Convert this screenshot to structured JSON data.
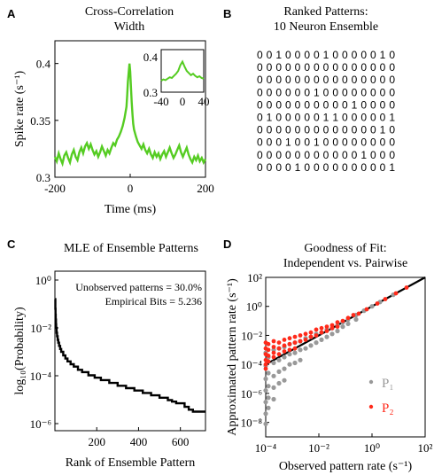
{
  "panels": {
    "A": {
      "letter": "A",
      "title1": "Cross-Correlation",
      "title2": "Width"
    },
    "B": {
      "letter": "B",
      "title1": "Ranked Patterns:",
      "title2": "10 Neuron Ensemble"
    },
    "C": {
      "letter": "C",
      "title1": "MLE of Ensemble Patterns"
    },
    "D": {
      "letter": "D",
      "title1": "Goodness of Fit:",
      "title2": "Independent vs. Pairwise"
    }
  },
  "colors": {
    "green": "#55cc22",
    "gray": "#999999",
    "red": "#ff2a1a",
    "black": "#000000"
  },
  "chart_data": [
    {
      "id": "A",
      "type": "line",
      "title": "Cross-Correlation Width",
      "xlabel": "Time (ms)",
      "ylabel": "Spike rate (s⁻¹)",
      "xlim": [
        -200,
        200
      ],
      "ylim": [
        0.3,
        0.42
      ],
      "xticks": [
        "-200",
        "0",
        "200"
      ],
      "yticks": [
        "0.3",
        "0.35",
        "0.4"
      ],
      "series": [
        {
          "x": [
            -200,
            -195,
            -190,
            -185,
            -180,
            -175,
            -170,
            -165,
            -160,
            -155,
            -150,
            -145,
            -140,
            -135,
            -130,
            -125,
            -120,
            -115,
            -110,
            -105,
            -100,
            -95,
            -90,
            -85,
            -80,
            -75,
            -70,
            -65,
            -60,
            -55,
            -50,
            -45,
            -40,
            -35,
            -30,
            -25,
            -20,
            -15,
            -10,
            -8,
            -6,
            -4,
            -2,
            0,
            2,
            4,
            6,
            8,
            10,
            15,
            20,
            25,
            30,
            35,
            40,
            45,
            50,
            55,
            60,
            65,
            70,
            75,
            80,
            85,
            90,
            95,
            100,
            105,
            110,
            115,
            120,
            125,
            130,
            135,
            140,
            145,
            150,
            155,
            160,
            165,
            170,
            175,
            180,
            185,
            190,
            195,
            200
          ],
          "y": [
            0.318,
            0.314,
            0.321,
            0.316,
            0.312,
            0.319,
            0.322,
            0.317,
            0.313,
            0.32,
            0.324,
            0.318,
            0.315,
            0.322,
            0.326,
            0.321,
            0.327,
            0.33,
            0.325,
            0.329,
            0.324,
            0.32,
            0.323,
            0.318,
            0.322,
            0.327,
            0.323,
            0.319,
            0.324,
            0.321,
            0.326,
            0.33,
            0.328,
            0.333,
            0.336,
            0.34,
            0.345,
            0.352,
            0.362,
            0.372,
            0.384,
            0.392,
            0.4,
            0.393,
            0.38,
            0.366,
            0.355,
            0.347,
            0.342,
            0.336,
            0.331,
            0.328,
            0.325,
            0.329,
            0.324,
            0.321,
            0.325,
            0.32,
            0.317,
            0.322,
            0.318,
            0.321,
            0.316,
            0.32,
            0.323,
            0.318,
            0.322,
            0.326,
            0.321,
            0.317,
            0.32,
            0.324,
            0.328,
            0.322,
            0.318,
            0.322,
            0.326,
            0.32,
            0.316,
            0.313,
            0.318,
            0.315,
            0.319,
            0.314,
            0.317,
            0.313,
            0.316
          ]
        }
      ],
      "inset": {
        "xlim": [
          -40,
          40
        ],
        "ylim": [
          0.3,
          0.42
        ],
        "xticks": [
          "-40",
          "0",
          "40"
        ],
        "yticks": [
          "0.3",
          "0.4"
        ],
        "x": [
          -40,
          -36,
          -32,
          -28,
          -24,
          -20,
          -16,
          -12,
          -8,
          -4,
          0,
          4,
          8,
          12,
          16,
          20,
          24,
          28,
          32,
          36,
          40
        ],
        "y": [
          0.332,
          0.336,
          0.334,
          0.338,
          0.342,
          0.34,
          0.346,
          0.352,
          0.36,
          0.376,
          0.386,
          0.372,
          0.36,
          0.354,
          0.348,
          0.352,
          0.346,
          0.342,
          0.345,
          0.34,
          0.338
        ]
      }
    },
    {
      "id": "B",
      "type": "table",
      "title": "Ranked Patterns: 10 Neuron Ensemble",
      "rows": [
        "0 0 1 0 0 0 0 1 0 0 0 0 0 1 0",
        "0 0 0 0 0 0 0 0 0 0 0 0 0 0 0",
        "0 0 0 0 0 0 0 0 0 0 0 0 0 0 0",
        "0 0 0 0 0 0 1 0 0 0 0 0 0 0 0",
        "0 0 0 0 0 0 0 0 0 0 1 0 0 0 0",
        "0 1 0 0 0 0 0 1 1 0 0 0 0 0 1",
        "0 0 0 0 0 0 0 0 0 0 0 0 0 1 0",
        "0 0 0 1 0 0 1 0 0 0 0 0 0 0 0",
        "0 0 0 0 0 0 0 0 0 0 0 1 0 0 0",
        "0 0 0 0 1 0 0 0 0 0 0 0 0 0 1"
      ]
    },
    {
      "id": "C",
      "type": "line",
      "title": "MLE of Ensemble Patterns",
      "xlabel": "Rank of Ensemble Pattern",
      "ylabel": "log₁₀(Probability)",
      "xlim": [
        0,
        720
      ],
      "ylim_log10": [
        -6,
        0
      ],
      "xticks": [
        "200",
        "400",
        "600"
      ],
      "yticks": [
        "10⁰",
        "10⁻²",
        "10⁻⁴",
        "10⁻⁶"
      ],
      "annotations": [
        "Unobserved patterns = 30.0%",
        "Empirical Bits = 5.236"
      ],
      "series": [
        {
          "x": [
            1,
            2,
            3,
            4,
            5,
            6,
            8,
            10,
            13,
            16,
            20,
            25,
            30,
            40,
            50,
            60,
            75,
            90,
            110,
            130,
            160,
            190,
            220,
            260,
            300,
            340,
            380,
            420,
            460,
            500,
            540,
            560,
            580,
            620,
            640,
            660,
            700,
            720
          ],
          "log10_y": [
            -0.8,
            -1.2,
            -1.45,
            -1.65,
            -1.85,
            -2.0,
            -2.2,
            -2.35,
            -2.5,
            -2.62,
            -2.75,
            -2.88,
            -3.0,
            -3.15,
            -3.28,
            -3.4,
            -3.52,
            -3.62,
            -3.75,
            -3.85,
            -3.98,
            -4.08,
            -4.18,
            -4.3,
            -4.42,
            -4.52,
            -4.62,
            -4.72,
            -4.82,
            -4.92,
            -5.02,
            -5.08,
            -5.15,
            -5.3,
            -5.42,
            -5.5,
            -5.5,
            -5.5
          ]
        }
      ]
    },
    {
      "id": "D",
      "type": "scatter",
      "title": "Goodness of Fit: Independent vs. Pairwise",
      "xlabel": "Observed pattern rate (s⁻¹)",
      "ylabel": "Approximated pattern rate (s⁻¹)",
      "xlim_log10": [
        -4,
        2
      ],
      "ylim_log10": [
        -9,
        2
      ],
      "xticks": [
        "10⁻⁴",
        "10⁻²",
        "10⁰",
        "10²"
      ],
      "yticks": [
        "10²",
        "10⁰",
        "10⁻²",
        "10⁻⁴",
        "10⁻⁶",
        "10⁻⁸"
      ],
      "series": [
        {
          "name": "P₁",
          "color": "#999999",
          "points_log10": [
            [
              -4,
              -3.2
            ],
            [
              -4,
              -4.1
            ],
            [
              -4,
              -5.0
            ],
            [
              -4,
              -5.8
            ],
            [
              -4,
              -6.6
            ],
            [
              -4,
              -7.4
            ],
            [
              -4,
              -8.1
            ],
            [
              -3.9,
              -3.5
            ],
            [
              -3.9,
              -4.6
            ],
            [
              -3.9,
              -5.5
            ],
            [
              -3.9,
              -6.3
            ],
            [
              -3.9,
              -7.0
            ],
            [
              -3.7,
              -3.0
            ],
            [
              -3.7,
              -3.9
            ],
            [
              -3.7,
              -4.8
            ],
            [
              -3.7,
              -5.6
            ],
            [
              -3.7,
              -6.4
            ],
            [
              -3.5,
              -2.9
            ],
            [
              -3.5,
              -3.7
            ],
            [
              -3.5,
              -4.5
            ],
            [
              -3.5,
              -5.3
            ],
            [
              -3.3,
              -2.8
            ],
            [
              -3.3,
              -3.5
            ],
            [
              -3.3,
              -4.3
            ],
            [
              -3.3,
              -5.1
            ],
            [
              -3.1,
              -2.6
            ],
            [
              -3.1,
              -3.3
            ],
            [
              -3.1,
              -4.0
            ],
            [
              -2.9,
              -2.5
            ],
            [
              -2.9,
              -3.2
            ],
            [
              -2.9,
              -3.9
            ],
            [
              -2.7,
              -2.4
            ],
            [
              -2.7,
              -3.0
            ],
            [
              -2.7,
              -3.7
            ],
            [
              -2.5,
              -2.2
            ],
            [
              -2.5,
              -2.9
            ],
            [
              -2.3,
              -2.1
            ],
            [
              -2.3,
              -2.7
            ],
            [
              -2.1,
              -1.9
            ],
            [
              -2.1,
              -2.5
            ],
            [
              -1.9,
              -1.8
            ],
            [
              -1.9,
              -2.3
            ],
            [
              -1.7,
              -1.6
            ],
            [
              -1.7,
              -2.1
            ],
            [
              -1.5,
              -1.5
            ],
            [
              -1.5,
              -1.9
            ],
            [
              -1.3,
              -1.3
            ],
            [
              -1.3,
              -1.7
            ],
            [
              -1.1,
              -1.1
            ],
            [
              -1.1,
              -1.4
            ],
            [
              -0.9,
              -0.9
            ],
            [
              -0.9,
              -1.2
            ],
            [
              -0.6,
              -0.6
            ],
            [
              -0.6,
              -0.9
            ],
            [
              -0.3,
              -0.3
            ],
            [
              0,
              0
            ],
            [
              0.3,
              0.3
            ],
            [
              0.8,
              0.8
            ]
          ]
        },
        {
          "name": "P₂",
          "color": "#ff2a1a",
          "points_log10": [
            [
              -4,
              -2.5
            ],
            [
              -4,
              -2.9
            ],
            [
              -4,
              -3.3
            ],
            [
              -4,
              -3.7
            ],
            [
              -4,
              -4.0
            ],
            [
              -4,
              -4.3
            ],
            [
              -3.9,
              -2.6
            ],
            [
              -3.9,
              -3.0
            ],
            [
              -3.9,
              -3.4
            ],
            [
              -3.9,
              -3.8
            ],
            [
              -3.7,
              -2.4
            ],
            [
              -3.7,
              -2.8
            ],
            [
              -3.7,
              -3.2
            ],
            [
              -3.7,
              -3.5
            ],
            [
              -3.5,
              -2.5
            ],
            [
              -3.5,
              -2.9
            ],
            [
              -3.5,
              -3.3
            ],
            [
              -3.3,
              -2.3
            ],
            [
              -3.3,
              -2.7
            ],
            [
              -3.3,
              -3.1
            ],
            [
              -3.1,
              -2.2
            ],
            [
              -3.1,
              -2.6
            ],
            [
              -3.1,
              -3.0
            ],
            [
              -2.9,
              -2.1
            ],
            [
              -2.9,
              -2.5
            ],
            [
              -2.9,
              -2.9
            ],
            [
              -2.7,
              -2.0
            ],
            [
              -2.7,
              -2.4
            ],
            [
              -2.5,
              -1.9
            ],
            [
              -2.5,
              -2.3
            ],
            [
              -2.3,
              -1.8
            ],
            [
              -2.3,
              -2.1
            ],
            [
              -2.1,
              -1.6
            ],
            [
              -2.1,
              -2.0
            ],
            [
              -1.9,
              -1.5
            ],
            [
              -1.9,
              -1.8
            ],
            [
              -1.7,
              -1.4
            ],
            [
              -1.7,
              -1.7
            ],
            [
              -1.5,
              -1.3
            ],
            [
              -1.5,
              -1.5
            ],
            [
              -1.3,
              -1.1
            ],
            [
              -1.3,
              -1.4
            ],
            [
              -1.1,
              -1.0
            ],
            [
              -0.9,
              -0.8
            ],
            [
              -0.7,
              -0.6
            ],
            [
              -0.5,
              -0.5
            ],
            [
              -0.2,
              -0.2
            ],
            [
              0.2,
              0.2
            ],
            [
              0.5,
              0.5
            ],
            [
              0.9,
              0.9
            ],
            [
              1.3,
              1.3
            ]
          ]
        }
      ],
      "reference_line": "y = x",
      "legend_position": "bottom-right"
    }
  ]
}
